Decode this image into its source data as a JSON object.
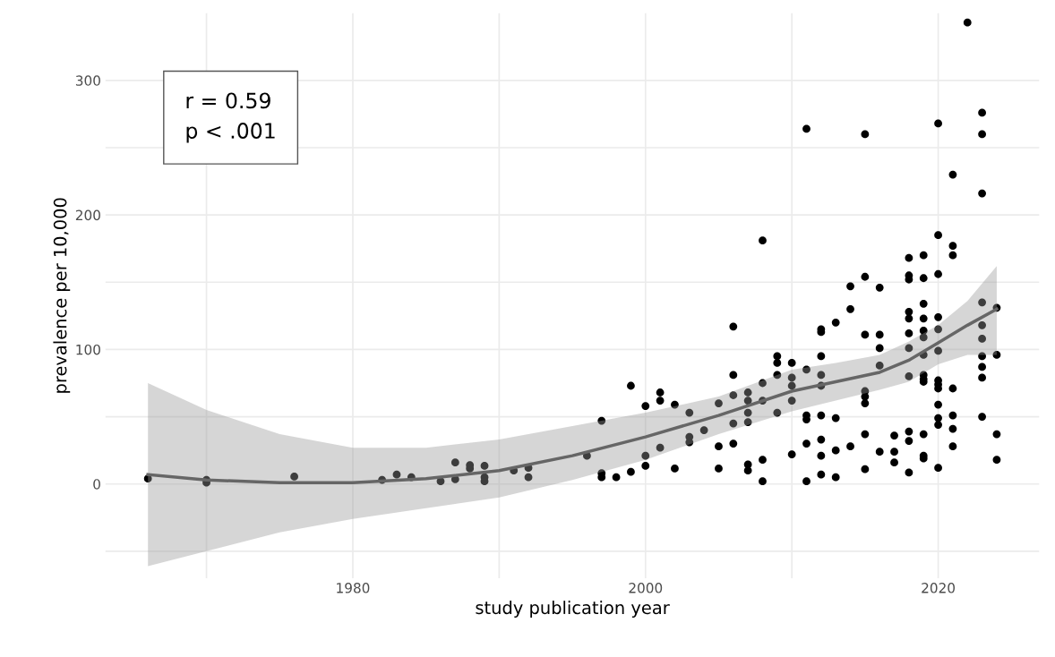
{
  "chart_data": {
    "type": "scatter",
    "xlabel": "study publication year",
    "ylabel": "prevalence per 10,000",
    "annotations": [
      "r = 0.59\np < .001"
    ],
    "xlim": [
      1963.1,
      2026.9
    ],
    "ylim": [
      -70,
      350
    ],
    "xticks": [
      {
        "value": 1970,
        "label": null
      },
      1980,
      {
        "value": 1990,
        "label": null
      },
      2000,
      {
        "value": 2010,
        "label": null
      },
      2020
    ],
    "yticks": [
      {
        "value": -50,
        "label": null
      },
      0,
      {
        "value": 50,
        "label": null
      },
      100,
      {
        "value": 150,
        "label": null
      },
      200,
      {
        "value": 250,
        "label": null
      },
      300
    ],
    "grid": true,
    "legend": false,
    "marker": "circle",
    "series": [
      {
        "color": "#000000",
        "x": [
          1966,
          1970,
          1970,
          1976,
          1982,
          1983,
          1984,
          1986,
          1987,
          1987,
          1988,
          1988,
          1989,
          1989,
          1989,
          1991,
          1992,
          1992,
          1996,
          1997,
          1997,
          1997,
          1998,
          1999,
          1999,
          2000,
          2000,
          2000,
          2001,
          2001,
          2001,
          2002,
          2002,
          2003,
          2003,
          2003,
          2004,
          2005,
          2005,
          2005,
          2006,
          2006,
          2006,
          2006,
          2006,
          2007,
          2007,
          2007,
          2007,
          2007,
          2007,
          2008,
          2008,
          2008,
          2008,
          2008,
          2009,
          2009,
          2009,
          2009,
          2010,
          2010,
          2010,
          2010,
          2010,
          2011,
          2011,
          2011,
          2011,
          2011,
          2011,
          2012,
          2012,
          2012,
          2012,
          2012,
          2012,
          2012,
          2012,
          2012,
          2013,
          2013,
          2013,
          2013,
          2014,
          2014,
          2014,
          2015,
          2015,
          2015,
          2015,
          2015,
          2015,
          2015,
          2015,
          2016,
          2016,
          2016,
          2016,
          2016,
          2017,
          2017,
          2017,
          2018,
          2018,
          2018,
          2018,
          2018,
          2018,
          2018,
          2018,
          2018,
          2018,
          2018,
          2019,
          2019,
          2019,
          2019,
          2019,
          2019,
          2019,
          2019,
          2019,
          2019,
          2019,
          2019,
          2019,
          2020,
          2020,
          2020,
          2020,
          2020,
          2020,
          2020,
          2020,
          2020,
          2020,
          2020,
          2020,
          2020,
          2021,
          2021,
          2021,
          2021,
          2021,
          2021,
          2021,
          2022,
          2023,
          2023,
          2023,
          2023,
          2023,
          2023,
          2023,
          2023,
          2023,
          2023,
          2024,
          2024,
          2024,
          2024
        ],
        "values": [
          4,
          3,
          1,
          5.5,
          3,
          7,
          5,
          2,
          16,
          3.5,
          14,
          11.5,
          13.5,
          5,
          2,
          10,
          12,
          5,
          21,
          47,
          8,
          5,
          5,
          73,
          9,
          58,
          21,
          13.5,
          68,
          62,
          27,
          59,
          11.5,
          53,
          35,
          31,
          40,
          60,
          28,
          11.5,
          117,
          81,
          66,
          45,
          30,
          68,
          62,
          53,
          46,
          14.5,
          10,
          181,
          75,
          62,
          18,
          2,
          95,
          90,
          81,
          53,
          90,
          79,
          73,
          62,
          22,
          264,
          85,
          51,
          48,
          30,
          2,
          115,
          113,
          95,
          81,
          73,
          51,
          33,
          21,
          7,
          120,
          49,
          25,
          5,
          147,
          130,
          28,
          260,
          154,
          111,
          69,
          65,
          60,
          37,
          11,
          146,
          111,
          101,
          88,
          24,
          36,
          24,
          16,
          168,
          155,
          152,
          128,
          123,
          112,
          101,
          80,
          39,
          32,
          8.5,
          170,
          153,
          134,
          123,
          114,
          109,
          96,
          81,
          78,
          76,
          37,
          21,
          19,
          268,
          185,
          156,
          124,
          115,
          99,
          77,
          74,
          71,
          59,
          49,
          44,
          12,
          230,
          177,
          170,
          71,
          51,
          41,
          28,
          343,
          276,
          260,
          216,
          135,
          118,
          108,
          95,
          87,
          79,
          50,
          131,
          96,
          37,
          18
        ]
      },
      {
        "type": "line",
        "color": "#666666",
        "marker": "none",
        "line_style": "solid",
        "x": [
          1966,
          1970,
          1975,
          1980,
          1985,
          1990,
          1995,
          2000,
          2005,
          2010,
          2013,
          2016,
          2018,
          2020,
          2022,
          2024
        ],
        "values": [
          7,
          3,
          1,
          1,
          4,
          10,
          21,
          35,
          51,
          69,
          76,
          83,
          92,
          105,
          118,
          130
        ],
        "lower": [
          -61,
          -50,
          -36,
          -26,
          -18,
          -10,
          3,
          18,
          37,
          54,
          62,
          70,
          76,
          89,
          96,
          96
        ],
        "upper": [
          75,
          55,
          37,
          27,
          27,
          33,
          43,
          53,
          65,
          85,
          90,
          96,
          106,
          118,
          136,
          162
        ]
      }
    ]
  }
}
